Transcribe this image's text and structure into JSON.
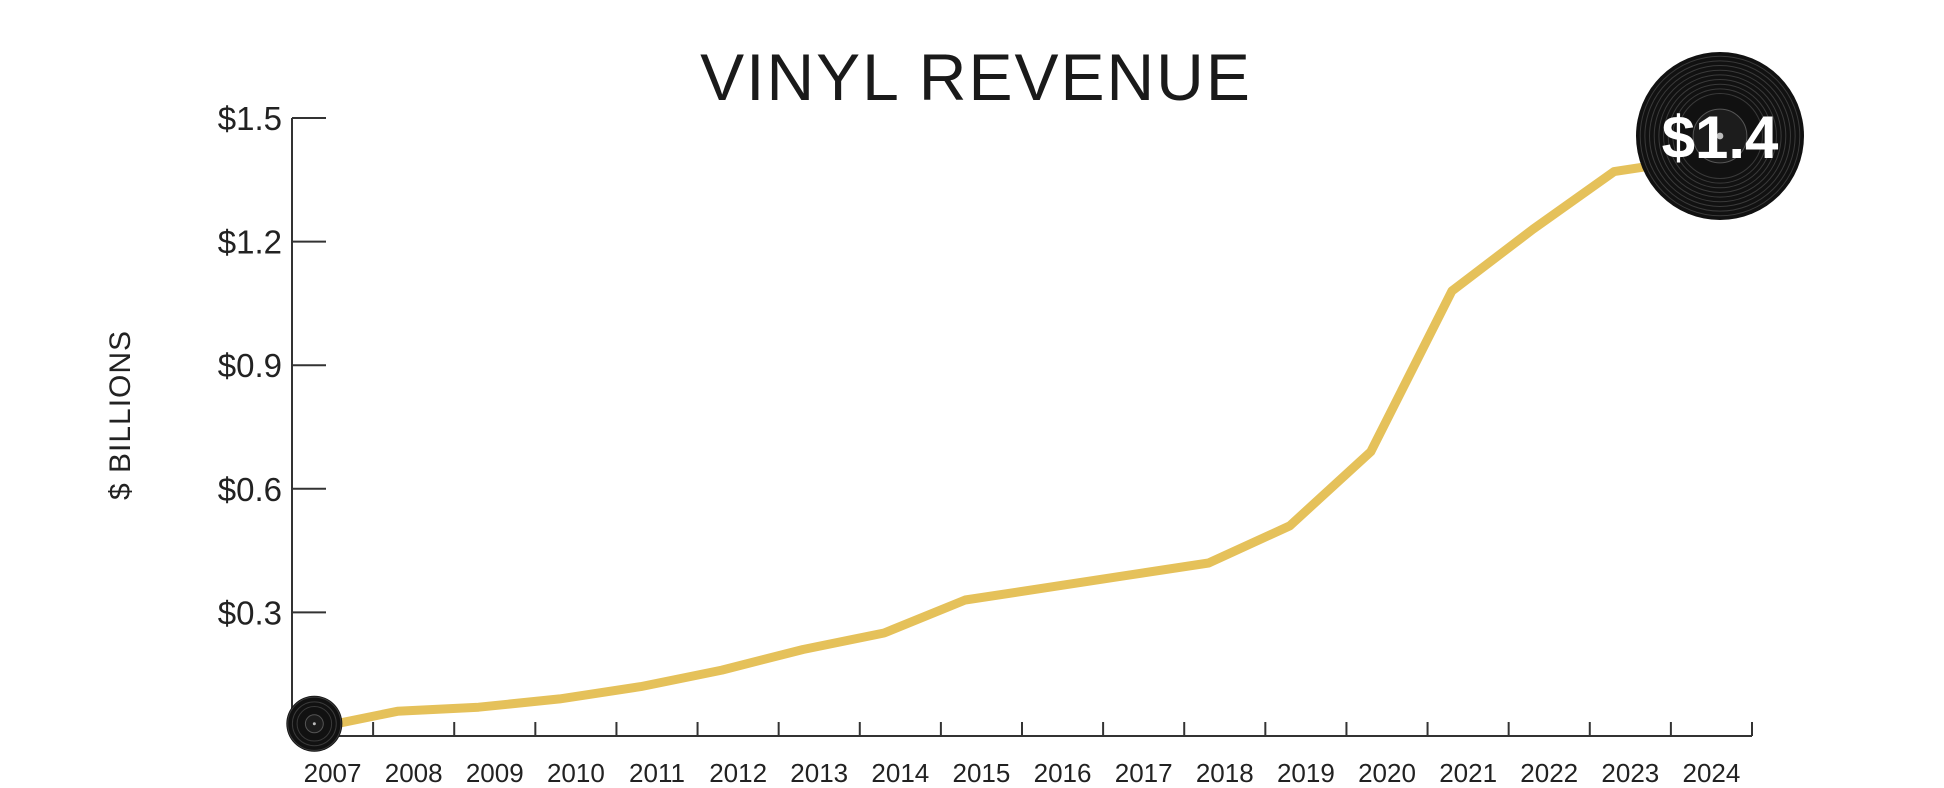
{
  "chart_data": {
    "type": "line",
    "title": "VINYL REVENUE",
    "ylabel": "$ BILLIONS",
    "xlabel": "",
    "ylim": [
      0,
      1.5
    ],
    "yticks": [
      {
        "value": 0.3,
        "label": "$0.3"
      },
      {
        "value": 0.6,
        "label": "$0.6"
      },
      {
        "value": 0.9,
        "label": "$0.9"
      },
      {
        "value": 1.2,
        "label": "$1.2"
      },
      {
        "value": 1.5,
        "label": "$1.5"
      }
    ],
    "categories": [
      "2007",
      "2008",
      "2009",
      "2010",
      "2011",
      "2012",
      "2013",
      "2014",
      "2015",
      "2016",
      "2017",
      "2018",
      "2019",
      "2020",
      "2021",
      "2022",
      "2023",
      "2024"
    ],
    "values": [
      0.02,
      0.06,
      0.07,
      0.09,
      0.12,
      0.16,
      0.21,
      0.25,
      0.33,
      0.36,
      0.39,
      0.42,
      0.51,
      0.69,
      1.08,
      1.23,
      1.37,
      1.4
    ],
    "end_label": "$1.4",
    "grid": false,
    "line_color": "#E5C15A",
    "marker_color": "#111111"
  }
}
